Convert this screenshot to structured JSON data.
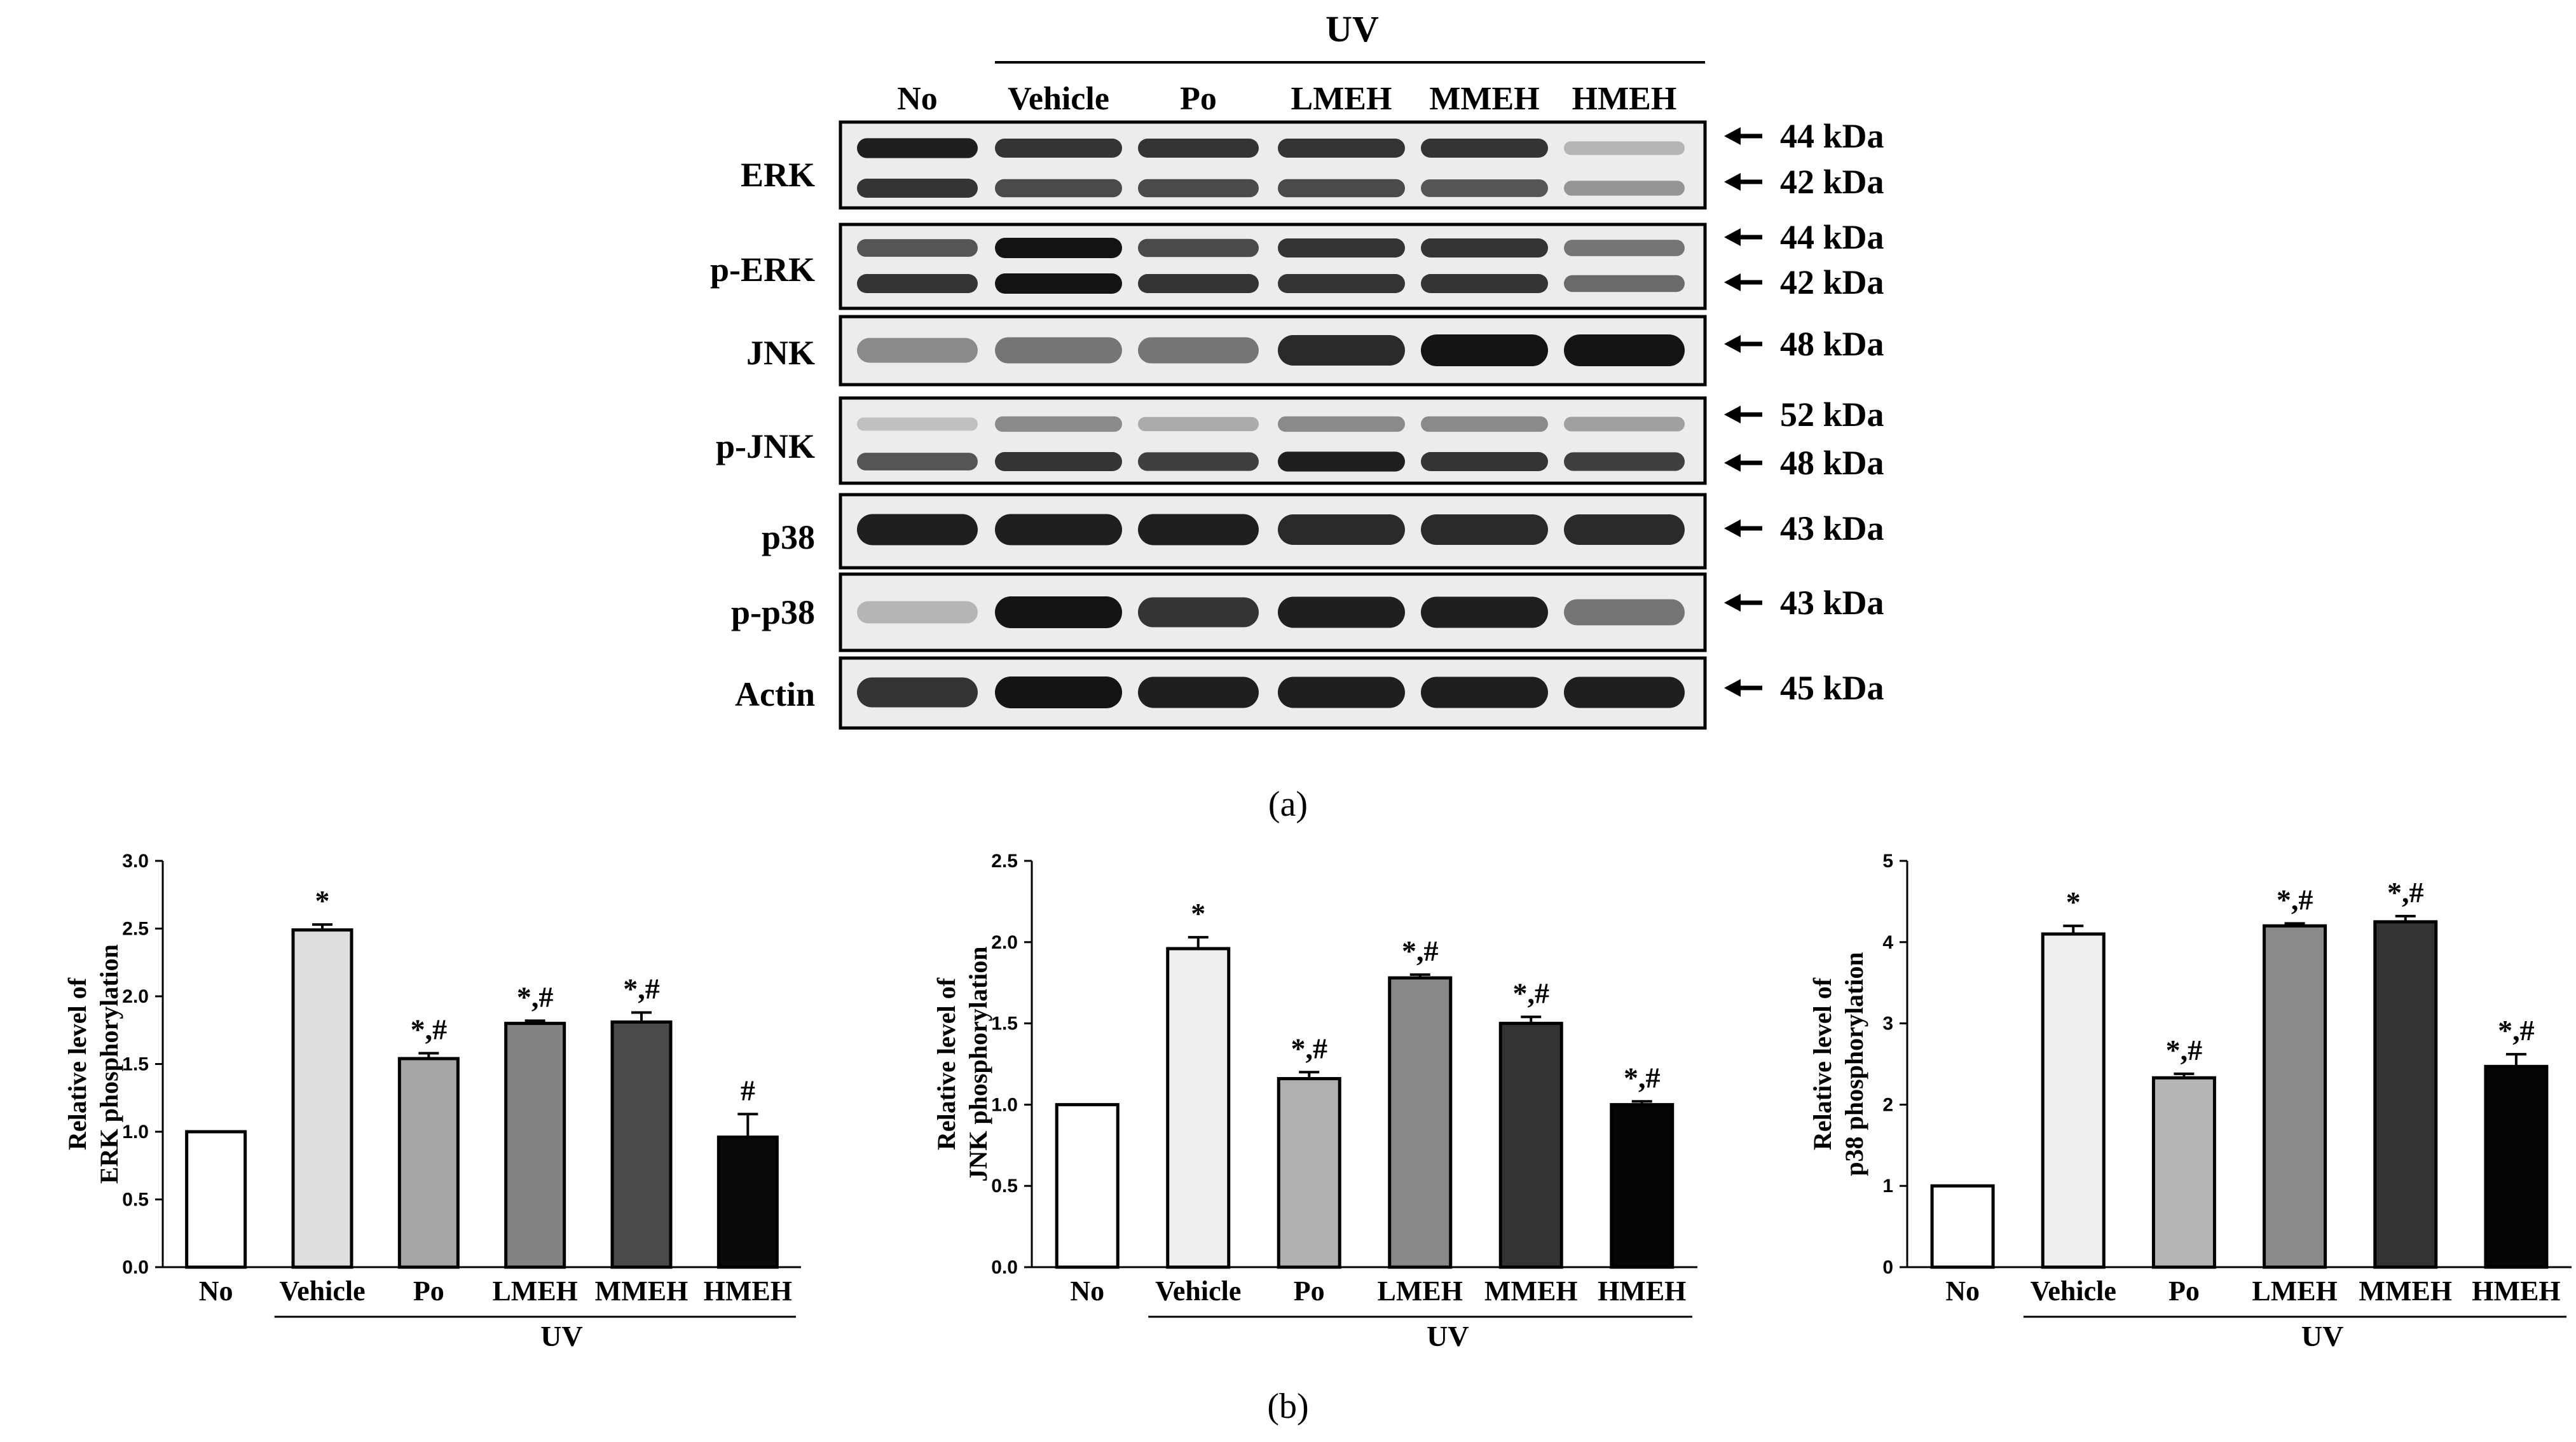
{
  "panel_a": {
    "uv_label": "UV",
    "lanes": [
      "No",
      "Vehicle",
      "Po",
      "LMEH",
      "MMEH",
      "HMEH"
    ],
    "blots": [
      {
        "name": "ERK",
        "kda": [
          "44 kDa",
          "42 kDa"
        ],
        "bands": [
          [
            0.95,
            0.85
          ],
          [
            0.85,
            0.75
          ],
          [
            0.85,
            0.75
          ],
          [
            0.85,
            0.75
          ],
          [
            0.85,
            0.7
          ],
          [
            0.25,
            0.4
          ]
        ]
      },
      {
        "name": "p-ERK",
        "kda": [
          "44 kDa",
          "42 kDa"
        ],
        "bands": [
          [
            0.7,
            0.85
          ],
          [
            1.0,
            1.0
          ],
          [
            0.75,
            0.85
          ],
          [
            0.85,
            0.85
          ],
          [
            0.85,
            0.85
          ],
          [
            0.55,
            0.6
          ]
        ]
      },
      {
        "name": "JNK",
        "kda": [
          "48 kDa"
        ],
        "bands": [
          [
            0.45
          ],
          [
            0.55
          ],
          [
            0.55
          ],
          [
            0.9
          ],
          [
            1.0
          ],
          [
            1.0
          ]
        ]
      },
      {
        "name": "p-JNK",
        "kda": [
          "52 kDa",
          "48 kDa"
        ],
        "bands": [
          [
            0.2,
            0.7
          ],
          [
            0.45,
            0.85
          ],
          [
            0.3,
            0.8
          ],
          [
            0.45,
            0.95
          ],
          [
            0.45,
            0.85
          ],
          [
            0.35,
            0.8
          ]
        ]
      },
      {
        "name": "p38",
        "kda": [
          "43 kDa"
        ],
        "bands": [
          [
            0.95
          ],
          [
            0.95
          ],
          [
            0.95
          ],
          [
            0.9
          ],
          [
            0.9
          ],
          [
            0.9
          ]
        ]
      },
      {
        "name": "p-p38",
        "kda": [
          "43 kDa"
        ],
        "bands": [
          [
            0.25
          ],
          [
            1.0
          ],
          [
            0.85
          ],
          [
            0.95
          ],
          [
            0.95
          ],
          [
            0.55
          ]
        ]
      },
      {
        "name": "Actin",
        "kda": [
          "45 kDa"
        ],
        "bands": [
          [
            0.85
          ],
          [
            1.0
          ],
          [
            0.95
          ],
          [
            0.95
          ],
          [
            0.95
          ],
          [
            0.95
          ]
        ]
      }
    ],
    "caption": "(a)"
  },
  "caption_b": "(b)",
  "chart_data": [
    {
      "type": "bar",
      "categories": [
        "No",
        "Vehicle",
        "Po",
        "LMEH",
        "MMEH",
        "HMEH"
      ],
      "values": [
        1.0,
        2.49,
        1.54,
        1.8,
        1.81,
        0.96
      ],
      "errors": [
        0,
        0.04,
        0.04,
        0.02,
        0.07,
        0.17
      ],
      "annotations": [
        "",
        "*",
        "*,#",
        "*,#",
        "*,#",
        "#"
      ],
      "colors": [
        "#ffffff",
        "#dedede",
        "#a6a6a6",
        "#838383",
        "#4a4a4a",
        "#0a0a0a"
      ],
      "ylabel": [
        "Relative level of",
        "ERK phosphorylation"
      ],
      "yticks": [
        "0.0",
        "0.5",
        "1.0",
        "1.5",
        "2.0",
        "2.5",
        "3.0"
      ],
      "ylim": [
        0,
        3.0
      ],
      "group_label": "UV"
    },
    {
      "type": "bar",
      "categories": [
        "No",
        "Vehicle",
        "Po",
        "LMEH",
        "MMEH",
        "HMEH"
      ],
      "values": [
        1.0,
        1.96,
        1.16,
        1.78,
        1.5,
        1.0
      ],
      "errors": [
        0,
        0.07,
        0.04,
        0.02,
        0.04,
        0.02
      ],
      "annotations": [
        "",
        "*",
        "*,#",
        "*,#",
        "*,#",
        "*,#"
      ],
      "colors": [
        "#ffffff",
        "#eeeeee",
        "#b0b0b0",
        "#888888",
        "#333333",
        "#050505"
      ],
      "ylabel": [
        "Relative level of",
        "JNK phosphorylation"
      ],
      "yticks": [
        "0.0",
        "0.5",
        "1.0",
        "1.5",
        "2.0",
        "2.5"
      ],
      "ylim": [
        0,
        2.5
      ],
      "group_label": "UV"
    },
    {
      "type": "bar",
      "categories": [
        "No",
        "Vehicle",
        "Po",
        "LMEH",
        "MMEH",
        "HMEH"
      ],
      "values": [
        1.0,
        4.1,
        2.33,
        4.2,
        4.25,
        2.47
      ],
      "errors": [
        0,
        0.1,
        0.05,
        0.03,
        0.07,
        0.15
      ],
      "annotations": [
        "",
        "*",
        "*,#",
        "*,#",
        "*,#",
        "*,#"
      ],
      "colors": [
        "#ffffff",
        "#eeeeee",
        "#b5b5b5",
        "#8a8a8a",
        "#333333",
        "#050505"
      ],
      "ylabel": [
        "Relative level of",
        "p38 phosphorylation"
      ],
      "yticks": [
        "0",
        "1",
        "2",
        "3",
        "4",
        "5"
      ],
      "ylim": [
        0,
        5
      ],
      "group_label": "UV"
    }
  ]
}
